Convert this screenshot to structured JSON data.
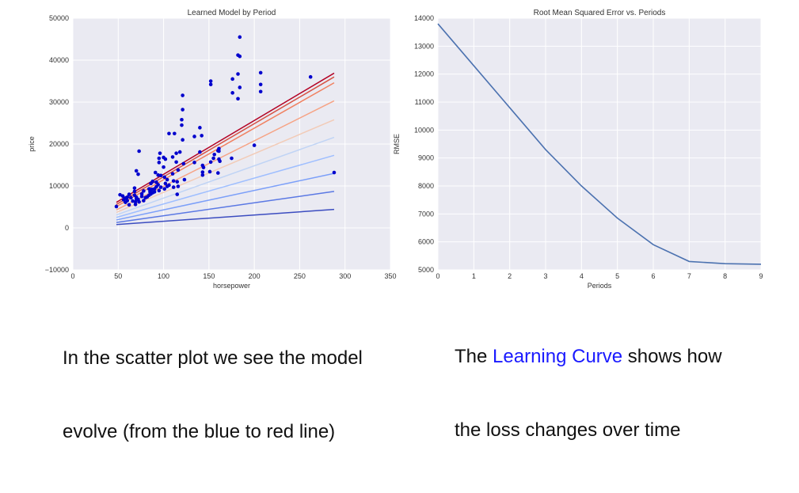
{
  "chart_data": [
    {
      "type": "scatter",
      "title": "Learned Model by Period",
      "xlabel": "horsepower",
      "ylabel": "price",
      "xlim": [
        0,
        350
      ],
      "ylim": [
        -10000,
        50000
      ],
      "xticks": [
        0,
        50,
        100,
        150,
        200,
        250,
        300,
        350
      ],
      "yticks": [
        -10000,
        0,
        10000,
        20000,
        30000,
        40000,
        50000
      ],
      "ytick_labels": [
        "−10000",
        "0",
        "10000",
        "20000",
        "30000",
        "40000",
        "50000"
      ],
      "grid": true,
      "background": "#eaeaf2",
      "point_color": "#0000cd",
      "points": [
        [
          48,
          5100
        ],
        [
          52,
          7900
        ],
        [
          55,
          7600
        ],
        [
          56,
          6700
        ],
        [
          58,
          7100
        ],
        [
          58,
          6100
        ],
        [
          60,
          6500
        ],
        [
          60,
          7300
        ],
        [
          62,
          5500
        ],
        [
          62,
          8000
        ],
        [
          64,
          7200
        ],
        [
          66,
          6400
        ],
        [
          68,
          8700
        ],
        [
          68,
          7800
        ],
        [
          68,
          9500
        ],
        [
          69,
          6200
        ],
        [
          69,
          5600
        ],
        [
          70,
          13600
        ],
        [
          70,
          6900
        ],
        [
          70,
          7300
        ],
        [
          72,
          12800
        ],
        [
          72,
          6800
        ],
        [
          73,
          18300
        ],
        [
          73,
          6200
        ],
        [
          76,
          8100
        ],
        [
          76,
          7500
        ],
        [
          78,
          8800
        ],
        [
          78,
          6500
        ],
        [
          80,
          7200
        ],
        [
          82,
          7400
        ],
        [
          84,
          9300
        ],
        [
          84,
          7800
        ],
        [
          85,
          8600
        ],
        [
          86,
          10600
        ],
        [
          86,
          8100
        ],
        [
          87,
          9200
        ],
        [
          88,
          8400
        ],
        [
          88,
          11100
        ],
        [
          90,
          9300
        ],
        [
          90,
          8600
        ],
        [
          91,
          13200
        ],
        [
          92,
          9800
        ],
        [
          92,
          10900
        ],
        [
          94,
          10300
        ],
        [
          94,
          12600
        ],
        [
          95,
          15600
        ],
        [
          95,
          16600
        ],
        [
          95,
          8900
        ],
        [
          96,
          17800
        ],
        [
          97,
          12500
        ],
        [
          97,
          9700
        ],
        [
          100,
          16800
        ],
        [
          100,
          14500
        ],
        [
          101,
          12100
        ],
        [
          101,
          9300
        ],
        [
          102,
          10600
        ],
        [
          102,
          16400
        ],
        [
          104,
          11500
        ],
        [
          104,
          9900
        ],
        [
          106,
          22500
        ],
        [
          106,
          10200
        ],
        [
          110,
          16900
        ],
        [
          110,
          12900
        ],
        [
          111,
          11200
        ],
        [
          111,
          9700
        ],
        [
          112,
          22500
        ],
        [
          114,
          15700
        ],
        [
          114,
          17800
        ],
        [
          115,
          11000
        ],
        [
          115,
          8000
        ],
        [
          116,
          9900
        ],
        [
          116,
          13800
        ],
        [
          118,
          18100
        ],
        [
          120,
          25800
        ],
        [
          120,
          24500
        ],
        [
          121,
          21000
        ],
        [
          121,
          31600
        ],
        [
          121,
          28200
        ],
        [
          122,
          15300
        ],
        [
          123,
          11500
        ],
        [
          134,
          21800
        ],
        [
          134,
          15600
        ],
        [
          140,
          23900
        ],
        [
          140,
          18100
        ],
        [
          142,
          22000
        ],
        [
          143,
          13300
        ],
        [
          143,
          12600
        ],
        [
          143,
          14900
        ],
        [
          144,
          14400
        ],
        [
          151,
          13400
        ],
        [
          152,
          35000
        ],
        [
          152,
          34200
        ],
        [
          152,
          15700
        ],
        [
          155,
          16600
        ],
        [
          156,
          17500
        ],
        [
          160,
          13100
        ],
        [
          160,
          18400
        ],
        [
          161,
          18900
        ],
        [
          161,
          18300
        ],
        [
          161,
          16400
        ],
        [
          162,
          15900
        ],
        [
          175,
          16600
        ],
        [
          176,
          35500
        ],
        [
          176,
          32200
        ],
        [
          182,
          30800
        ],
        [
          182,
          36700
        ],
        [
          182,
          41200
        ],
        [
          184,
          45500
        ],
        [
          184,
          40900
        ],
        [
          184,
          33500
        ],
        [
          200,
          19700
        ],
        [
          207,
          37000
        ],
        [
          207,
          34200
        ],
        [
          207,
          32500
        ],
        [
          262,
          36000
        ],
        [
          288,
          13200
        ]
      ],
      "lines": [
        {
          "x": [
            48,
            288
          ],
          "y": [
            800,
            4400
          ],
          "color": "#3b4cc0"
        },
        {
          "x": [
            48,
            288
          ],
          "y": [
            1300,
            8700
          ],
          "color": "#5a78e4"
        },
        {
          "x": [
            48,
            288
          ],
          "y": [
            1900,
            13000
          ],
          "color": "#7b9ff9"
        },
        {
          "x": [
            48,
            288
          ],
          "y": [
            2500,
            17300
          ],
          "color": "#9ebeff"
        },
        {
          "x": [
            48,
            288
          ],
          "y": [
            3100,
            21600
          ],
          "color": "#c0d4f5"
        },
        {
          "x": [
            48,
            288
          ],
          "y": [
            3700,
            25800
          ],
          "color": "#f2cbb7"
        },
        {
          "x": [
            48,
            288
          ],
          "y": [
            4300,
            30300
          ],
          "color": "#f6a385"
        },
        {
          "x": [
            48,
            288
          ],
          "y": [
            5100,
            34600
          ],
          "color": "#f08161"
        },
        {
          "x": [
            48,
            288
          ],
          "y": [
            5600,
            36000
          ],
          "color": "#d65244"
        },
        {
          "x": [
            48,
            288
          ],
          "y": [
            6100,
            36900
          ],
          "color": "#b40426"
        }
      ]
    },
    {
      "type": "line",
      "title": "Root Mean Squared Error vs. Periods",
      "xlabel": "Periods",
      "ylabel": "RMSE",
      "xlim": [
        0,
        9
      ],
      "ylim": [
        5000,
        14000
      ],
      "xticks": [
        0,
        1,
        2,
        3,
        4,
        5,
        6,
        7,
        8,
        9
      ],
      "yticks": [
        5000,
        6000,
        7000,
        8000,
        9000,
        10000,
        11000,
        12000,
        13000,
        14000
      ],
      "grid": true,
      "background": "#eaeaf2",
      "line_color": "#4c72b0",
      "x": [
        0,
        1,
        2,
        3,
        4,
        5,
        6,
        7,
        8,
        9
      ],
      "y": [
        13800,
        12300,
        10800,
        9300,
        8000,
        6850,
        5900,
        5300,
        5220,
        5200
      ]
    }
  ],
  "captions": {
    "left_line1": "In the scatter plot we see the model",
    "left_line2": "evolve (from the blue to red line)",
    "right_pre": "The ",
    "right_link": "Learning Curve",
    "right_post": " shows how",
    "right_line2": "the loss changes over time"
  }
}
